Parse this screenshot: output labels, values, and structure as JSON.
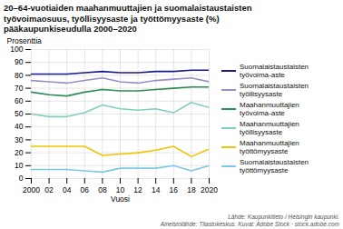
{
  "chart_data": {
    "type": "line",
    "title": "20–64-vuotiaiden maahanmuuttajien ja suomalaistaustaisten\ntyövoimaosuus, työllisyysaste ja työttömyysaste (%)\npääkaupunkiseudulla 2000–2020",
    "xlabel": "Vuosi",
    "ylabel": "Prosenttia",
    "annotations": [
      "Lähde: Kaupunkitieto / Helsingin kaupunki.\nAineistolähde: Tilastokeskus. Kuvat: Adobe Stock · stock.adobe.com"
    ],
    "x": [
      2000,
      2002,
      2004,
      2006,
      2008,
      2010,
      2012,
      2014,
      2016,
      2018,
      2020
    ],
    "series": [
      {
        "name": "Suomalaistaustaisten\ntyövoima-aste",
        "color": "#1a1a8c",
        "values": [
          81,
          81,
          81,
          82,
          83,
          82,
          82,
          83,
          83,
          84,
          84
        ]
      },
      {
        "name": "Suomalaistaustaisten\ntyöllisyysaste",
        "color": "#9b8ec4",
        "values": [
          76,
          75,
          74,
          76,
          78,
          75,
          74,
          76,
          77,
          78,
          75
        ]
      },
      {
        "name": "Maahanmuuttajien\ntyövoima-aste",
        "color": "#2e8b57",
        "values": [
          67,
          65,
          64,
          67,
          69,
          68,
          68,
          69,
          70,
          71,
          71
        ]
      },
      {
        "name": "Maahanmuuttajien\ntyöllisyysaste",
        "color": "#7ecfc0",
        "values": [
          50,
          48,
          48,
          51,
          57,
          54,
          53,
          54,
          51,
          59,
          55
        ]
      },
      {
        "name": "Maahanmuuttajien\ntyöttömyysaste",
        "color": "#f0c400",
        "values": [
          25,
          25,
          25,
          25,
          18,
          19,
          20,
          22,
          25,
          17,
          23
        ]
      },
      {
        "name": "Suomalaistaustaisten\ntyöttömyysaste",
        "color": "#7ec8e3",
        "values": [
          7,
          7,
          7,
          6,
          5,
          8,
          8,
          8,
          10,
          6,
          10
        ]
      }
    ],
    "xlim": [
      2000,
      2020
    ],
    "xticks": [
      2000,
      {
        "value": 2002,
        "label": "02"
      },
      {
        "value": 2004,
        "label": "04"
      },
      {
        "value": 2006,
        "label": "06"
      },
      {
        "value": 2008,
        "label": "08"
      },
      {
        "value": 2010,
        "label": "10"
      },
      {
        "value": 2012,
        "label": "12"
      },
      {
        "value": 2014,
        "label": "14"
      },
      {
        "value": 2016,
        "label": "16"
      },
      {
        "value": 2018,
        "label": "18"
      },
      2020
    ],
    "ylim": [
      0,
      100
    ],
    "yticks": [
      0,
      10,
      20,
      30,
      40,
      50,
      60,
      70,
      80,
      90,
      100
    ],
    "grid": true,
    "legend": "right"
  }
}
